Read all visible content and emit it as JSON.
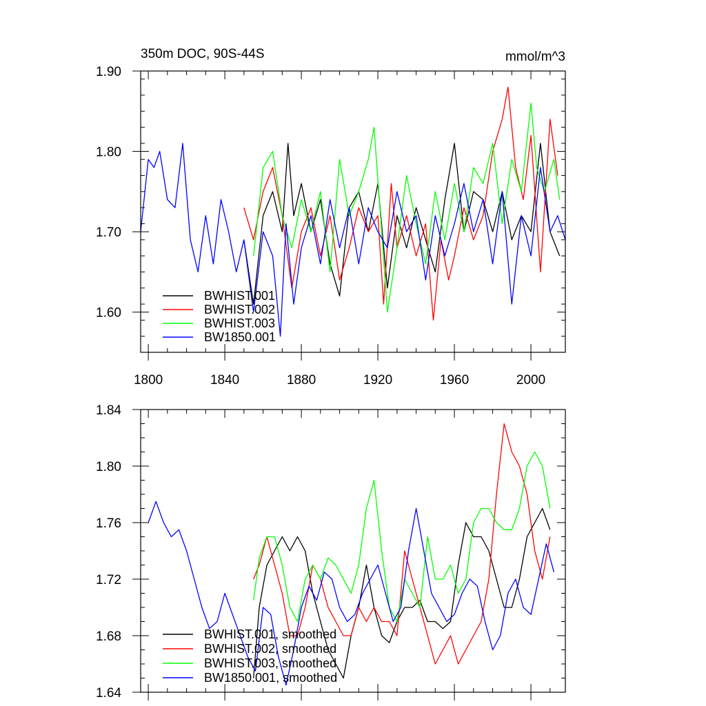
{
  "colors": {
    "BWHIST.001": "#000000",
    "BWHIST.002": "#ff0000",
    "BWHIST.003": "#00ff00",
    "BW1850.001": "#0000ff"
  },
  "chart_data": [
    {
      "type": "line",
      "title": "350m DOC, 90S-44S",
      "units": "mmol/m^3",
      "xlim": [
        1796,
        2018
      ],
      "ylim": [
        1.55,
        1.9
      ],
      "x_ticks": [
        1800,
        1840,
        1880,
        1920,
        1960,
        2000
      ],
      "y_ticks": [
        1.6,
        1.7,
        1.8,
        1.9
      ],
      "y_tick_labels": [
        "1.60",
        "1.70",
        "1.80",
        "1.90"
      ],
      "legend": [
        "BWHIST.001",
        "BWHIST.002",
        "BWHIST.003",
        "BW1850.001"
      ],
      "legend_placement": "bottom-left",
      "series": [
        {
          "name": "BWHIST.001",
          "x": [
            1850,
            1855,
            1860,
            1865,
            1870,
            1873,
            1876,
            1880,
            1885,
            1890,
            1895,
            1900,
            1905,
            1910,
            1915,
            1920,
            1925,
            1930,
            1935,
            1940,
            1945,
            1950,
            1955,
            1960,
            1965,
            1970,
            1975,
            1980,
            1985,
            1990,
            1995,
            2000,
            2005,
            2010,
            2015
          ],
          "y": [
            1.69,
            1.61,
            1.72,
            1.75,
            1.7,
            1.81,
            1.72,
            1.76,
            1.7,
            1.74,
            1.66,
            1.62,
            1.73,
            1.75,
            1.7,
            1.76,
            1.63,
            1.72,
            1.68,
            1.73,
            1.69,
            1.65,
            1.74,
            1.81,
            1.7,
            1.75,
            1.74,
            1.7,
            1.75,
            1.69,
            1.72,
            1.7,
            1.81,
            1.7,
            1.67
          ]
        },
        {
          "name": "BWHIST.002",
          "x": [
            1850,
            1855,
            1860,
            1865,
            1870,
            1875,
            1880,
            1885,
            1890,
            1895,
            1900,
            1905,
            1910,
            1915,
            1920,
            1923,
            1927,
            1930,
            1935,
            1940,
            1945,
            1949,
            1953,
            1957,
            1960,
            1965,
            1970,
            1975,
            1980,
            1985,
            1988,
            1992,
            1996,
            2000,
            2005,
            2010,
            2014
          ],
          "y": [
            1.73,
            1.69,
            1.75,
            1.78,
            1.72,
            1.63,
            1.7,
            1.73,
            1.67,
            1.72,
            1.64,
            1.68,
            1.73,
            1.7,
            1.72,
            1.61,
            1.76,
            1.68,
            1.72,
            1.67,
            1.71,
            1.59,
            1.69,
            1.64,
            1.67,
            1.73,
            1.69,
            1.72,
            1.8,
            1.84,
            1.88,
            1.78,
            1.74,
            1.82,
            1.65,
            1.84,
            1.77
          ]
        },
        {
          "name": "BWHIST.003",
          "x": [
            1855,
            1860,
            1865,
            1870,
            1875,
            1880,
            1885,
            1890,
            1895,
            1900,
            1905,
            1910,
            1915,
            1918,
            1922,
            1925,
            1930,
            1935,
            1940,
            1945,
            1950,
            1955,
            1960,
            1965,
            1970,
            1975,
            1980,
            1985,
            1990,
            1995,
            2000,
            2003,
            2007,
            2012,
            2015
          ],
          "y": [
            1.67,
            1.78,
            1.8,
            1.72,
            1.68,
            1.74,
            1.7,
            1.75,
            1.65,
            1.79,
            1.72,
            1.75,
            1.79,
            1.83,
            1.7,
            1.6,
            1.68,
            1.77,
            1.71,
            1.66,
            1.75,
            1.69,
            1.76,
            1.7,
            1.78,
            1.76,
            1.81,
            1.71,
            1.79,
            1.75,
            1.86,
            1.78,
            1.75,
            1.79,
            1.74
          ]
        },
        {
          "name": "BW1850.001",
          "x": [
            1796,
            1800,
            1803,
            1806,
            1810,
            1814,
            1818,
            1822,
            1826,
            1830,
            1834,
            1838,
            1842,
            1846,
            1850,
            1855,
            1860,
            1865,
            1869,
            1872,
            1876,
            1880,
            1885,
            1890,
            1895,
            1900,
            1905,
            1910,
            1915,
            1920,
            1925,
            1930,
            1935,
            1940,
            1945,
            1950,
            1955,
            1960,
            1965,
            1970,
            1975,
            1980,
            1985,
            1990,
            1995,
            2000,
            2005,
            2010,
            2014,
            2018
          ],
          "y": [
            1.7,
            1.79,
            1.78,
            1.8,
            1.74,
            1.73,
            1.81,
            1.69,
            1.65,
            1.72,
            1.66,
            1.74,
            1.7,
            1.65,
            1.69,
            1.6,
            1.7,
            1.67,
            1.57,
            1.71,
            1.61,
            1.68,
            1.72,
            1.66,
            1.74,
            1.68,
            1.73,
            1.66,
            1.73,
            1.7,
            1.68,
            1.75,
            1.7,
            1.72,
            1.64,
            1.72,
            1.67,
            1.71,
            1.76,
            1.7,
            1.74,
            1.66,
            1.75,
            1.61,
            1.72,
            1.67,
            1.78,
            1.7,
            1.72,
            1.69
          ]
        }
      ]
    },
    {
      "type": "line",
      "title": "",
      "xlim": [
        1796,
        2018
      ],
      "ylim": [
        1.64,
        1.84
      ],
      "x_ticks": [
        1800,
        1840,
        1880,
        1920,
        1960,
        2000
      ],
      "y_ticks": [
        1.64,
        1.68,
        1.72,
        1.76,
        1.8,
        1.84
      ],
      "y_tick_labels": [
        "1.64",
        "1.68",
        "1.72",
        "1.76",
        "1.80",
        "1.84"
      ],
      "legend": [
        "BWHIST.001, smoothed",
        "BWHIST.002, smoothed",
        "BWHIST.003, smoothed",
        "BW1850.001, smoothed"
      ],
      "legend_placement": "bottom-left",
      "series": [
        {
          "name": "BWHIST.001, smoothed",
          "x": [
            1855,
            1858,
            1862,
            1866,
            1870,
            1874,
            1878,
            1882,
            1886,
            1890,
            1894,
            1898,
            1902,
            1906,
            1910,
            1914,
            1918,
            1922,
            1926,
            1930,
            1934,
            1938,
            1942,
            1946,
            1950,
            1954,
            1958,
            1962,
            1966,
            1970,
            1974,
            1978,
            1982,
            1986,
            1990,
            1994,
            1998,
            2002,
            2006,
            2010
          ],
          "y": [
            1.65,
            1.7,
            1.73,
            1.74,
            1.75,
            1.74,
            1.75,
            1.74,
            1.71,
            1.69,
            1.67,
            1.66,
            1.65,
            1.68,
            1.7,
            1.73,
            1.7,
            1.68,
            1.675,
            1.69,
            1.7,
            1.7,
            1.705,
            1.69,
            1.69,
            1.685,
            1.69,
            1.73,
            1.76,
            1.75,
            1.75,
            1.74,
            1.72,
            1.7,
            1.7,
            1.72,
            1.75,
            1.76,
            1.77,
            1.755
          ]
        },
        {
          "name": "BWHIST.002, smoothed",
          "x": [
            1855,
            1858,
            1862,
            1866,
            1870,
            1874,
            1878,
            1882,
            1886,
            1890,
            1894,
            1898,
            1902,
            1906,
            1910,
            1914,
            1918,
            1922,
            1926,
            1930,
            1934,
            1938,
            1942,
            1946,
            1950,
            1954,
            1958,
            1962,
            1966,
            1970,
            1974,
            1978,
            1982,
            1986,
            1990,
            1994,
            1998,
            2002,
            2006,
            2010
          ],
          "y": [
            1.72,
            1.73,
            1.75,
            1.73,
            1.71,
            1.68,
            1.68,
            1.7,
            1.73,
            1.72,
            1.7,
            1.69,
            1.68,
            1.68,
            1.7,
            1.69,
            1.7,
            1.69,
            1.69,
            1.68,
            1.74,
            1.72,
            1.7,
            1.68,
            1.66,
            1.67,
            1.68,
            1.66,
            1.67,
            1.68,
            1.69,
            1.72,
            1.78,
            1.83,
            1.81,
            1.8,
            1.78,
            1.74,
            1.72,
            1.75
          ]
        },
        {
          "name": "BWHIST.003, smoothed",
          "x": [
            1855,
            1858,
            1862,
            1866,
            1870,
            1874,
            1878,
            1882,
            1886,
            1890,
            1894,
            1898,
            1902,
            1906,
            1910,
            1914,
            1918,
            1922,
            1926,
            1930,
            1934,
            1938,
            1942,
            1946,
            1950,
            1954,
            1958,
            1962,
            1966,
            1970,
            1974,
            1978,
            1982,
            1986,
            1990,
            1994,
            1998,
            2002,
            2006,
            2010
          ],
          "y": [
            1.705,
            1.735,
            1.75,
            1.75,
            1.73,
            1.7,
            1.69,
            1.72,
            1.73,
            1.72,
            1.735,
            1.73,
            1.72,
            1.71,
            1.73,
            1.77,
            1.79,
            1.74,
            1.7,
            1.69,
            1.72,
            1.71,
            1.7,
            1.75,
            1.72,
            1.72,
            1.73,
            1.71,
            1.72,
            1.76,
            1.77,
            1.77,
            1.76,
            1.755,
            1.755,
            1.77,
            1.8,
            1.81,
            1.8,
            1.77
          ]
        },
        {
          "name": "BW1850.001, smoothed",
          "x": [
            1800,
            1804,
            1808,
            1812,
            1816,
            1820,
            1824,
            1828,
            1832,
            1836,
            1840,
            1844,
            1848,
            1852,
            1856,
            1860,
            1864,
            1868,
            1872,
            1876,
            1880,
            1884,
            1888,
            1892,
            1896,
            1900,
            1904,
            1908,
            1912,
            1916,
            1920,
            1924,
            1928,
            1932,
            1936,
            1940,
            1944,
            1948,
            1952,
            1956,
            1960,
            1964,
            1968,
            1972,
            1976,
            1980,
            1984,
            1988,
            1992,
            1996,
            2000,
            2004,
            2008,
            2012
          ],
          "y": [
            1.76,
            1.775,
            1.76,
            1.75,
            1.755,
            1.74,
            1.72,
            1.7,
            1.685,
            1.69,
            1.71,
            1.695,
            1.68,
            1.665,
            1.655,
            1.7,
            1.695,
            1.665,
            1.645,
            1.67,
            1.7,
            1.715,
            1.705,
            1.725,
            1.72,
            1.7,
            1.69,
            1.695,
            1.71,
            1.72,
            1.73,
            1.71,
            1.69,
            1.7,
            1.74,
            1.77,
            1.74,
            1.71,
            1.7,
            1.69,
            1.695,
            1.71,
            1.72,
            1.715,
            1.69,
            1.67,
            1.68,
            1.71,
            1.72,
            1.7,
            1.695,
            1.72,
            1.745,
            1.725
          ]
        }
      ]
    }
  ]
}
